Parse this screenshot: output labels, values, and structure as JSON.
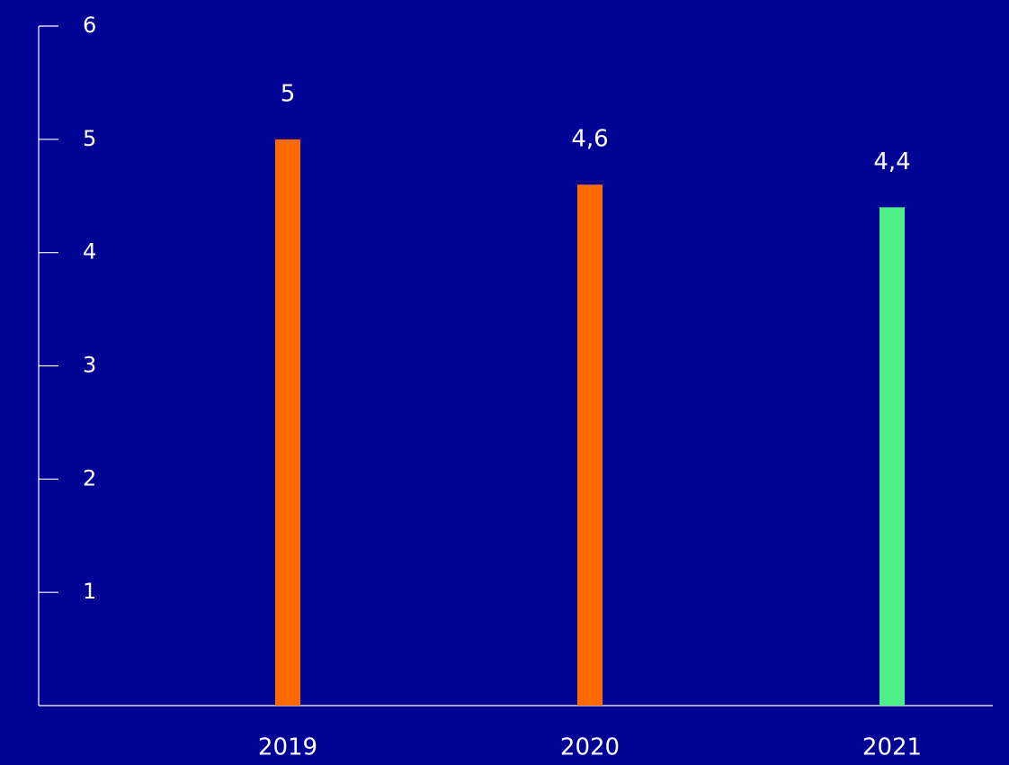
{
  "chart_data": {
    "type": "bar",
    "categories": [
      "2019",
      "2020",
      "2021"
    ],
    "values": [
      5,
      4.6,
      4.4
    ],
    "value_labels": [
      "5",
      "4,6",
      "4,4"
    ],
    "ylim": [
      0,
      6
    ],
    "yticks": [
      1,
      2,
      3,
      4,
      5,
      6
    ],
    "ytick_labels": [
      "1",
      "2",
      "3",
      "4",
      "5",
      "6"
    ],
    "grid": false,
    "bar_colors": [
      "#ff6a00",
      "#ff6a00",
      "#4def87"
    ],
    "background": "#000394",
    "text_color": "#ffffff"
  }
}
